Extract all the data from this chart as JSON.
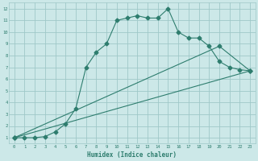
{
  "xlabel": "Humidex (Indice chaleur)",
  "ylabel": "",
  "xlim": [
    -0.5,
    23.5
  ],
  "ylim": [
    0.5,
    12.5
  ],
  "xticks": [
    0,
    1,
    2,
    3,
    4,
    5,
    6,
    7,
    8,
    9,
    10,
    11,
    12,
    13,
    14,
    15,
    16,
    17,
    18,
    19,
    20,
    21,
    22,
    23
  ],
  "yticks": [
    1,
    2,
    3,
    4,
    5,
    6,
    7,
    8,
    9,
    10,
    11,
    12
  ],
  "bg_color": "#cce8e8",
  "grid_color": "#9fc8c8",
  "line_color": "#2e7d6e",
  "line1_x": [
    0,
    1,
    2,
    3,
    4,
    5,
    6,
    7,
    8,
    9,
    10,
    11,
    12,
    13,
    14,
    15,
    16,
    17,
    18,
    19,
    20,
    21,
    22,
    23
  ],
  "line1_y": [
    1,
    1,
    1,
    1.1,
    1.5,
    2.2,
    3.5,
    7.0,
    8.3,
    9.0,
    11.0,
    11.2,
    11.4,
    11.2,
    11.2,
    12.0,
    10.0,
    9.5,
    9.5,
    8.8,
    7.5,
    7.0,
    6.8,
    6.7
  ],
  "line2_x": [
    0,
    23
  ],
  "line2_y": [
    1,
    6.7
  ],
  "line3_x": [
    0,
    20,
    23
  ],
  "line3_y": [
    1,
    8.8,
    6.7
  ],
  "lw": 0.8,
  "ms": 2.5
}
